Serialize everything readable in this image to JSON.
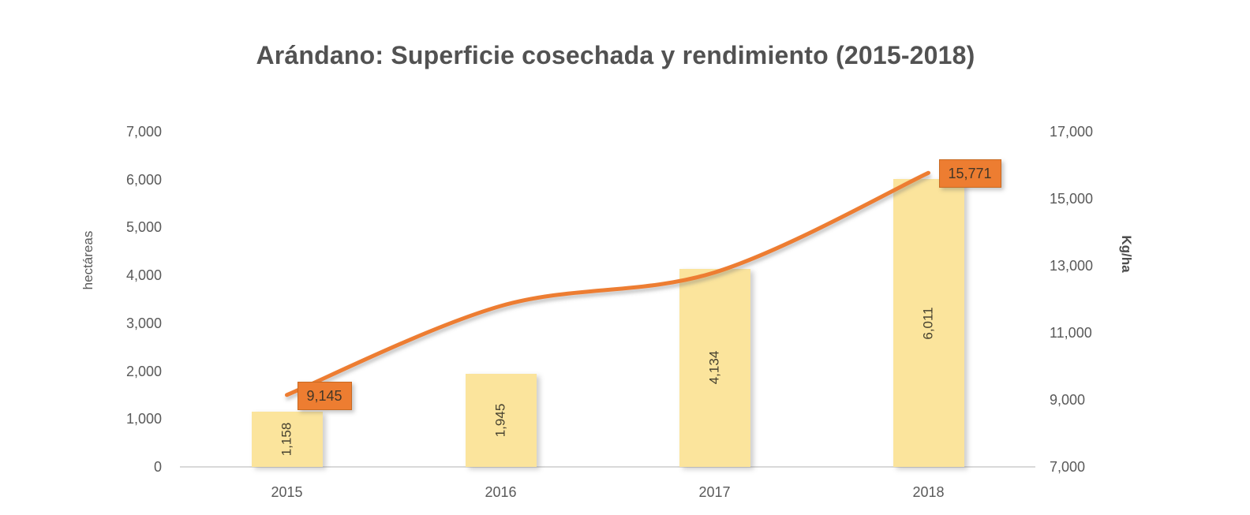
{
  "chart_data": {
    "type": "combo-bar-line",
    "title": "Arándano: Superficie cosechada y rendimiento (2015-2018)",
    "categories": [
      "2015",
      "2016",
      "2017",
      "2018"
    ],
    "series": [
      {
        "name": "superficie-cosechada",
        "type": "bar",
        "axis": "left",
        "values": [
          1158,
          1945,
          4134,
          6011
        ],
        "value_labels": [
          "1,158",
          "1,945",
          "4,134",
          "6,011"
        ],
        "color": "#FBE49C",
        "label_color": "#46412f"
      },
      {
        "name": "rendimiento",
        "type": "line",
        "axis": "right",
        "values": [
          9145,
          11800,
          12800,
          15771
        ],
        "values_note": "2016 and 2017 values estimated from gridlines; only 2015 and 2018 are labeled",
        "point_labels": [
          {
            "index": 0,
            "text": "9,145"
          },
          {
            "index": 3,
            "text": "15,771"
          }
        ],
        "color": "#ED7D31",
        "label_box_fill": "#ED7D31",
        "label_box_border": "#C96A21",
        "smooth": true
      }
    ],
    "left_axis": {
      "title": "hectáreas",
      "min": 0,
      "max": 7000,
      "step": 1000,
      "tick_labels": [
        "0",
        "1,000",
        "2,000",
        "3,000",
        "4,000",
        "5,000",
        "6,000",
        "7,000"
      ]
    },
    "right_axis": {
      "title": "Kg/ha",
      "min": 7000,
      "max": 17000,
      "step": 2000,
      "tick_labels": [
        "7,000",
        "9,000",
        "11,000",
        "13,000",
        "15,000",
        "17,000"
      ]
    },
    "grid": false,
    "legend": "none",
    "background": "#ffffff"
  }
}
